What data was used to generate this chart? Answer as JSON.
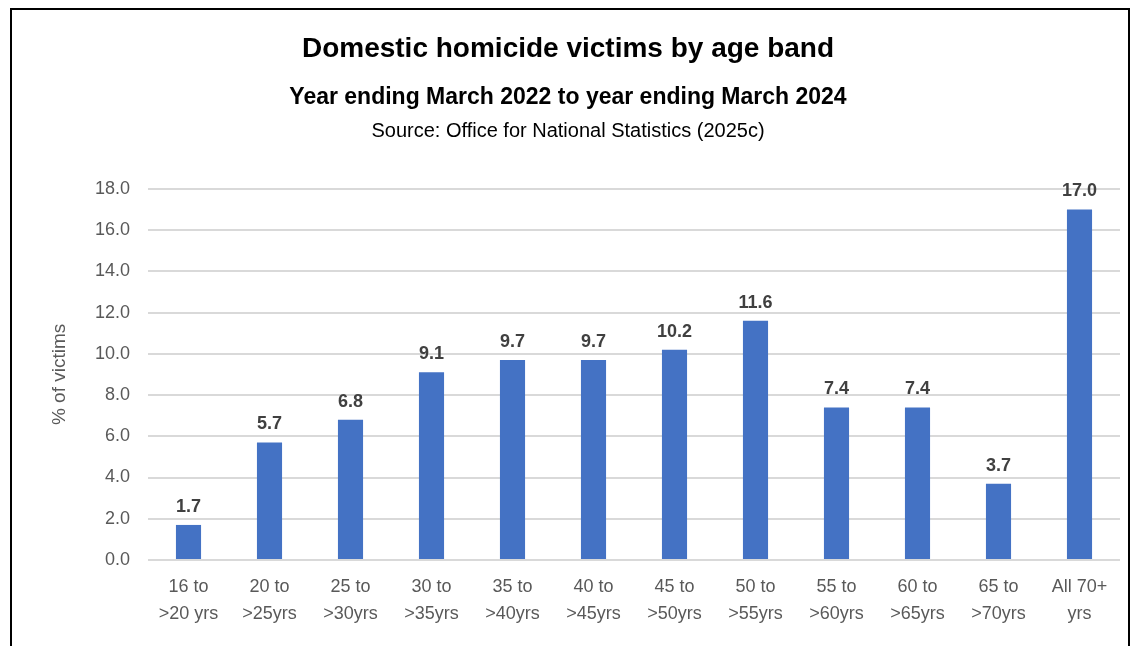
{
  "chart_data": {
    "type": "bar",
    "title": "Domestic homicide victims by age band",
    "subtitle": "Year ending March 2022 to year ending March 2024",
    "annotations": [
      "Source: Office for National Statistics (2025c)"
    ],
    "ylabel": "% of victims",
    "categories": [
      "16 to\n>20 yrs",
      "20 to\n>25yrs",
      "25 to\n>30yrs",
      "30 to\n>35yrs",
      "35 to\n>40yrs",
      "40 to\n>45yrs",
      "45 to\n>50yrs",
      "50 to\n>55yrs",
      "55 to\n>60yrs",
      "60 to\n>65yrs",
      "65 to\n>70yrs",
      "All 70+\nyrs"
    ],
    "values": [
      1.7,
      5.7,
      6.8,
      9.1,
      9.7,
      9.7,
      10.2,
      11.6,
      7.4,
      7.4,
      3.7,
      17.0
    ],
    "value_labels": [
      "1.7",
      "5.7",
      "6.8",
      "9.1",
      "9.7",
      "9.7",
      "10.2",
      "11.6",
      "7.4",
      "7.4",
      "3.7",
      "17.0"
    ],
    "color": "#4472c4",
    "ylim": [
      0,
      18
    ],
    "yticks": [
      {
        "value": 0,
        "label": "0.0"
      },
      {
        "value": 2,
        "label": "2.0"
      },
      {
        "value": 4,
        "label": "4.0"
      },
      {
        "value": 6,
        "label": "6.0"
      },
      {
        "value": 8,
        "label": "8.0"
      },
      {
        "value": 10,
        "label": "10.0"
      },
      {
        "value": 12,
        "label": "12.0"
      },
      {
        "value": 14,
        "label": "14.0"
      },
      {
        "value": 16,
        "label": "16.0"
      },
      {
        "value": 18,
        "label": "18.0"
      }
    ],
    "grid": "y"
  }
}
